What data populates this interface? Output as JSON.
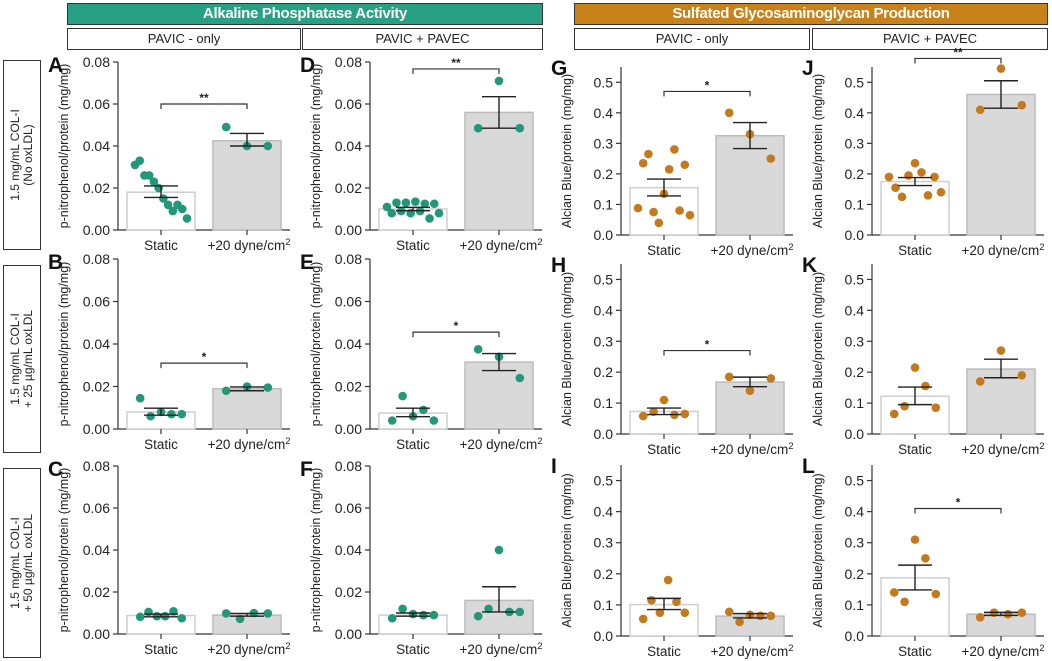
{
  "headers": [
    {
      "title": "Alkaline Phosphatase Activity",
      "color": "#27a083"
    },
    {
      "title": "Sulfated Glycosaminoglycan Production",
      "color": "#c9821a"
    }
  ],
  "subheaders": [
    "PAVIC - only",
    "PAVIC + PAVEC",
    "PAVIC - only",
    "PAVIC + PAVEC"
  ],
  "row_labels": [
    {
      "line1": "1.5 mg/mL COL-I",
      "line2": "(No oxLDL)"
    },
    {
      "line1": "1.5 mg/mL COL-I",
      "line2": "+ 25 µg/mL oxLDL"
    },
    {
      "line1": "1.5 mg/mL COL-I",
      "line2": "+ 50 µg/mL oxLDL"
    }
  ],
  "colors": {
    "alp_points": "#22977a",
    "gag_points": "#c47a1c",
    "static_bar": "#ffffff",
    "shear_bar": "#d9d9d9"
  },
  "chart_data": [
    {
      "panel": "A",
      "type": "bar",
      "ylabel": "p-nitrophenol/protein (mg/mg)",
      "ylim": [
        0,
        0.08
      ],
      "yticks": [
        "0.00",
        "0.02",
        "0.04",
        "0.06",
        "0.08"
      ],
      "categories": [
        "Static",
        "+20 dyne/cm²"
      ],
      "bars": [
        {
          "mean": 0.018,
          "sem": [
            0.0155,
            0.021
          ],
          "points": [
            0.031,
            0.033,
            0.026,
            0.026,
            0.023,
            0.02,
            0.015,
            0.012,
            0.009,
            0.012,
            0.01,
            0.0055
          ]
        },
        {
          "mean": 0.0425,
          "sem": [
            0.04,
            0.046
          ],
          "points": [
            0.049,
            0.04,
            0.04
          ]
        }
      ],
      "significance": "**"
    },
    {
      "panel": "B",
      "type": "bar",
      "ylabel": "p-nitrophenol/protein (mg/mg)",
      "ylim": [
        0,
        0.08
      ],
      "yticks": [
        "0.00",
        "0.02",
        "0.04",
        "0.06",
        "0.08"
      ],
      "categories": [
        "Static",
        "+20 dyne/cm²"
      ],
      "bars": [
        {
          "mean": 0.008,
          "sem": [
            0.0065,
            0.0098
          ],
          "points": [
            0.0145,
            0.006,
            0.008,
            0.007,
            0.007
          ]
        },
        {
          "mean": 0.019,
          "sem": [
            0.018,
            0.0198
          ],
          "points": [
            0.018,
            0.02,
            0.0195
          ]
        }
      ],
      "significance": "*"
    },
    {
      "panel": "C",
      "type": "bar",
      "ylabel": "p-nitrophenol/protein (mg/mg)",
      "ylim": [
        0,
        0.08
      ],
      "yticks": [
        "0.00",
        "0.02",
        "0.04",
        "0.06",
        "0.08"
      ],
      "categories": [
        "Static",
        "+20 dyne/cm²"
      ],
      "bars": [
        {
          "mean": 0.0088,
          "sem": [
            0.0082,
            0.0095
          ],
          "points": [
            0.0082,
            0.0105,
            0.0085,
            0.0085,
            0.0108,
            0.0075
          ]
        },
        {
          "mean": 0.009,
          "sem": [
            0.0085,
            0.0098
          ],
          "points": [
            0.0098,
            0.0072,
            0.01,
            0.0098
          ]
        }
      ],
      "significance": ""
    },
    {
      "panel": "D",
      "type": "bar",
      "ylabel": "p-nitrophenol/protein (mg/mg)",
      "ylim": [
        0,
        0.08
      ],
      "yticks": [
        "0.00",
        "0.02",
        "0.04",
        "0.06",
        "0.08"
      ],
      "categories": [
        "Static",
        "+20 dyne/cm²"
      ],
      "bars": [
        {
          "mean": 0.01,
          "sem": [
            0.0092,
            0.0108
          ],
          "points": [
            0.011,
            0.008,
            0.013,
            0.009,
            0.013,
            0.008,
            0.0135,
            0.009,
            0.0125,
            0.0055,
            0.0125,
            0.008
          ]
        },
        {
          "mean": 0.056,
          "sem": [
            0.0485,
            0.0635
          ],
          "points": [
            0.0485,
            0.071,
            0.0485
          ]
        }
      ],
      "significance": "**"
    },
    {
      "panel": "E",
      "type": "bar",
      "ylabel": "p-nitrophenol/protein (mg/mg)",
      "ylim": [
        0,
        0.08
      ],
      "yticks": [
        "0.00",
        "0.02",
        "0.04",
        "0.06",
        "0.08"
      ],
      "categories": [
        "Static",
        "+20 dyne/cm²"
      ],
      "bars": [
        {
          "mean": 0.0075,
          "sem": [
            0.0058,
            0.0098
          ],
          "points": [
            0.004,
            0.0155,
            0.006,
            0.009,
            0.004
          ]
        },
        {
          "mean": 0.0315,
          "sem": [
            0.0275,
            0.0355
          ],
          "points": [
            0.0375,
            0.034,
            0.024
          ]
        }
      ],
      "significance": "*"
    },
    {
      "panel": "F",
      "type": "bar",
      "ylabel": "p-nitrophenol/protein (mg/mg)",
      "ylim": [
        0,
        0.08
      ],
      "yticks": [
        "0.00",
        "0.02",
        "0.04",
        "0.06",
        "0.08"
      ],
      "categories": [
        "Static",
        "+20 dyne/cm²"
      ],
      "bars": [
        {
          "mean": 0.009,
          "sem": [
            0.0085,
            0.01
          ],
          "points": [
            0.0075,
            0.012,
            0.0095,
            0.009,
            0.009
          ]
        },
        {
          "mean": 0.016,
          "sem": [
            0.0105,
            0.0225
          ],
          "points": [
            0.0085,
            0.012,
            0.04,
            0.0105,
            0.0105
          ]
        }
      ],
      "significance": ""
    },
    {
      "panel": "G",
      "type": "bar",
      "ylabel": "Alcian Blue/protein (mg/mg)",
      "ylim": [
        0,
        0.55
      ],
      "yticks": [
        "0.0",
        "0.1",
        "0.2",
        "0.3",
        "0.4",
        "0.5"
      ],
      "categories": [
        "Static",
        "+20 dyne/cm²"
      ],
      "bars": [
        {
          "mean": 0.155,
          "sem": [
            0.128,
            0.183
          ],
          "points": [
            0.088,
            0.235,
            0.265,
            0.075,
            0.04,
            0.135,
            0.215,
            0.28,
            0.08,
            0.23,
            0.065
          ]
        },
        {
          "mean": 0.325,
          "sem": [
            0.283,
            0.368
          ],
          "points": [
            0.4,
            0.33,
            0.25
          ]
        }
      ],
      "significance": "*"
    },
    {
      "panel": "H",
      "type": "bar",
      "ylabel": "Alcian Blue/protein (mg/mg)",
      "ylim": [
        0,
        0.55
      ],
      "yticks": [
        "0.0",
        "0.1",
        "0.2",
        "0.3",
        "0.4",
        "0.5"
      ],
      "categories": [
        "Static",
        "+20 dyne/cm²"
      ],
      "bars": [
        {
          "mean": 0.073,
          "sem": [
            0.063,
            0.084
          ],
          "points": [
            0.058,
            0.072,
            0.11,
            0.062,
            0.065
          ]
        },
        {
          "mean": 0.168,
          "sem": [
            0.153,
            0.184
          ],
          "points": [
            0.185,
            0.14,
            0.18
          ]
        }
      ],
      "significance": "*"
    },
    {
      "panel": "I",
      "type": "bar",
      "ylabel": "Alcian Blue/protein (mg/mg)",
      "ylim": [
        0,
        0.55
      ],
      "yticks": [
        "0.0",
        "0.1",
        "0.2",
        "0.3",
        "0.4",
        "0.5"
      ],
      "categories": [
        "Static",
        "+20 dyne/cm²"
      ],
      "bars": [
        {
          "mean": 0.101,
          "sem": [
            0.085,
            0.121
          ],
          "points": [
            0.055,
            0.115,
            0.075,
            0.18,
            0.11,
            0.075
          ]
        },
        {
          "mean": 0.064,
          "sem": [
            0.058,
            0.072
          ],
          "points": [
            0.078,
            0.045,
            0.068,
            0.065,
            0.065
          ]
        }
      ],
      "significance": ""
    },
    {
      "panel": "J",
      "type": "bar",
      "ylabel": "Alcian Blue/protein (mg/mg)",
      "ylim": [
        0,
        0.55
      ],
      "yticks": [
        "0.0",
        "0.1",
        "0.2",
        "0.3",
        "0.4",
        "0.5"
      ],
      "categories": [
        "Static",
        "+20 dyne/cm²"
      ],
      "bars": [
        {
          "mean": 0.175,
          "sem": [
            0.162,
            0.188
          ],
          "points": [
            0.19,
            0.155,
            0.125,
            0.195,
            0.235,
            0.205,
            0.13,
            0.19,
            0.14
          ]
        },
        {
          "mean": 0.46,
          "sem": [
            0.415,
            0.505
          ],
          "points": [
            0.41,
            0.545,
            0.425
          ]
        }
      ],
      "significance": "**"
    },
    {
      "panel": "K",
      "type": "bar",
      "ylabel": "Alcian Blue/protein (mg/mg)",
      "ylim": [
        0,
        0.55
      ],
      "yticks": [
        "0.0",
        "0.1",
        "0.2",
        "0.3",
        "0.4",
        "0.5"
      ],
      "categories": [
        "Static",
        "+20 dyne/cm²"
      ],
      "bars": [
        {
          "mean": 0.122,
          "sem": [
            0.095,
            0.152
          ],
          "points": [
            0.065,
            0.09,
            0.215,
            0.155,
            0.085
          ]
        },
        {
          "mean": 0.21,
          "sem": [
            0.182,
            0.242
          ],
          "points": [
            0.17,
            0.27,
            0.19
          ]
        }
      ],
      "significance": ""
    },
    {
      "panel": "L",
      "type": "bar",
      "ylabel": "Alcian Blue/protein (mg/mg)",
      "ylim": [
        0,
        0.55
      ],
      "yticks": [
        "0.0",
        "0.1",
        "0.2",
        "0.3",
        "0.4",
        "0.5"
      ],
      "categories": [
        "Static",
        "+20 dyne/cm²"
      ],
      "bars": [
        {
          "mean": 0.187,
          "sem": [
            0.148,
            0.228
          ],
          "points": [
            0.14,
            0.11,
            0.31,
            0.25,
            0.135
          ]
        },
        {
          "mean": 0.07,
          "sem": [
            0.066,
            0.076
          ],
          "points": [
            0.06,
            0.075,
            0.07,
            0.075
          ]
        }
      ],
      "significance": "*"
    }
  ]
}
